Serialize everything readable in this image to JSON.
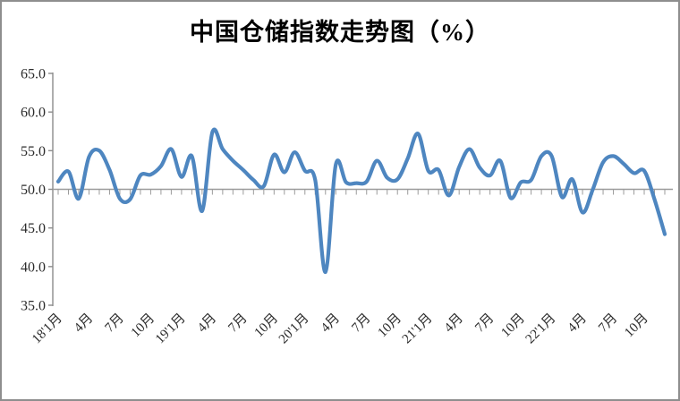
{
  "page": {
    "background_color": "#FFFFFF",
    "border_color": "#8E8E8E"
  },
  "chart_data": {
    "type": "line",
    "title": "中国仓储指数走势图（%）",
    "legend": "none",
    "grid": "baseline-only",
    "smooth": true,
    "line_color": "#4E86C0",
    "axis_color": "#8C8C8C",
    "baseline_color": "#9B9B9B",
    "label_color": "#2B2B2B",
    "baseline": 50,
    "y_axis": {
      "min": 35,
      "max": 65,
      "tick_step": 5,
      "tick_labels": [
        "65.0",
        "60.0",
        "55.0",
        "50.0",
        "45.0",
        "40.0",
        "35.0"
      ]
    },
    "x_axis": {
      "start": "2018-01",
      "end": "2022-12",
      "points": 60,
      "label_every_n_points": 3,
      "minor_tick_per_point": true,
      "tick_labels": [
        "18'1月",
        "4月",
        "7月",
        "10月",
        "19'1月",
        "4月",
        "7月",
        "10月",
        "20'1月",
        "4月",
        "7月",
        "10月",
        "21'1月",
        "4月",
        "7月",
        "10月",
        "22'1月",
        "4月",
        "7月",
        "10月"
      ]
    },
    "series": [
      {
        "values": [
          51.0,
          52.3,
          48.8,
          54.2,
          55.0,
          52.5,
          48.8,
          48.7,
          51.8,
          51.9,
          53.0,
          55.2,
          51.6,
          54.3,
          47.2,
          57.4,
          55.2,
          53.7,
          52.5,
          51.2,
          50.4,
          54.5,
          52.2,
          54.8,
          52.4,
          51.2,
          39.3,
          53.2,
          50.9,
          50.8,
          51.0,
          53.7,
          51.5,
          51.3,
          54.0,
          57.2,
          52.4,
          52.5,
          49.2,
          52.9,
          55.2,
          52.8,
          51.8,
          53.7,
          48.9,
          50.9,
          51.2,
          54.3,
          54.3,
          49.0,
          51.3,
          47.0,
          50.0,
          53.5,
          54.3,
          53.3,
          52.1,
          52.4,
          48.7,
          44.2
        ]
      }
    ]
  }
}
